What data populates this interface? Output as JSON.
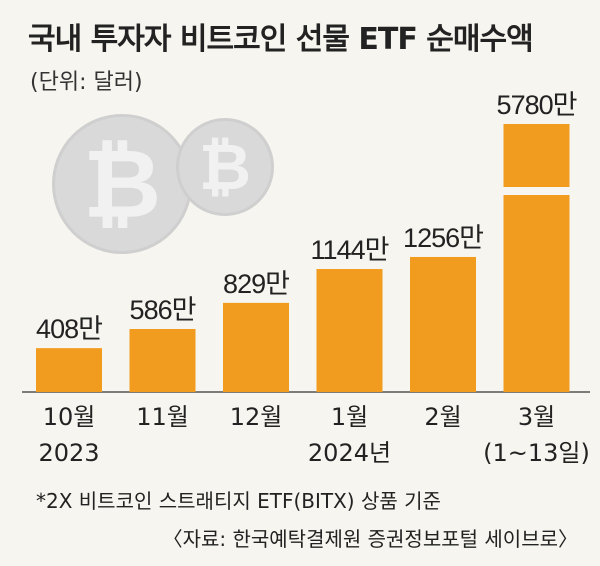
{
  "header": {
    "title": "국내 투자자 비트코인 선물 ETF 순매수액",
    "unit": "(단위: 달러)"
  },
  "icons": [
    "bitcoin-coin-icon",
    "bitcoin-coin-icon"
  ],
  "colors": {
    "bar": "#f19c1e",
    "background": "#f7f5ef",
    "axis": "#555555"
  },
  "chart_data": {
    "type": "bar",
    "categories": [
      "10월\n2023",
      "11월",
      "12월",
      "1월\n2024년",
      "2월",
      "3월\n(1~13일)"
    ],
    "values": [
      408,
      586,
      829,
      1144,
      1256,
      5780
    ],
    "value_labels": [
      "408만",
      "586만",
      "829만",
      "1144만",
      "1256만",
      "5780만"
    ],
    "axis_break": true,
    "unit": "만 달러"
  },
  "footer": {
    "footnote": "*2X 비트코인 스트래티지 ETF(BITX) 상품 기준",
    "source": "〈자료: 한국예탁결제원 증권정보포털 세이브로〉"
  }
}
